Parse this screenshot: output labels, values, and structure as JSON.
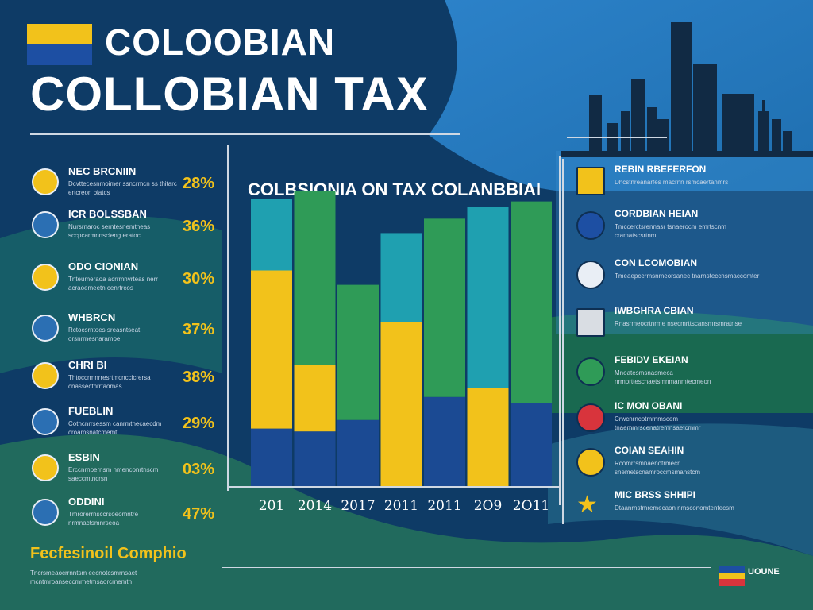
{
  "header": {
    "title_line1": "COLOOBIAN",
    "title_line2": "COLLOBIAN TAX",
    "flag_colors": [
      "#f2c21b",
      "#1d4fa3",
      "#f2c21b"
    ]
  },
  "left_items": [
    {
      "icon": "seal-icon",
      "title": "NEC BRCNIIN",
      "text": "Dcvttecesnmoimer ssncrmcn ss thitarc ertcreon biatcs",
      "pct": "28%"
    },
    {
      "icon": "bolt-icon",
      "title": "ICR BOLSSBAN",
      "text": "Nursrnaroc serntesnemtneas sccpcarmnnscleng eratoc",
      "pct": "36%"
    },
    {
      "icon": "money-stack-icon",
      "title": "ODO CIONIAN",
      "text": "Tnteumeraoa acrrmnvrteas nerr acraoemeetn cenrtrcos",
      "pct": "30%"
    },
    {
      "icon": "globe-icon",
      "title": "WHBRCN",
      "text": "Rctocsrntoes sreasntseat orsnrrnesnaramoe",
      "pct": "37%"
    },
    {
      "icon": "coin-icon",
      "title": "CHRI BI",
      "text": "Thtoccrmnrresrtmcnccicrersa cnassectnrrtaomas",
      "pct": "38%"
    },
    {
      "icon": "handshake-icon",
      "title": "FUEBLIN",
      "text": "Cotncnrrsessm canrmtnecaecdm croamsnatcmemt",
      "pct": "29%"
    },
    {
      "icon": "bulb-icon",
      "title": "ESBIN",
      "text": "Erccnrnoernsm nmenconrtnscm saeccmtncrsn",
      "pct": "03%"
    },
    {
      "icon": "emblem-icon",
      "title": "ODDINI",
      "text": "Tmrorerrnsccrsoeomntre nrmnactsmnrseoa",
      "pct": "47%"
    }
  ],
  "right_items": [
    {
      "icon": "square-flag-icon",
      "title": "REBIN RBEFERFON",
      "text": "Dhcstnreanarfes macrnn rsmcaertanmrs"
    },
    {
      "icon": "round-flag-icon",
      "title": "CORDBIAN HEIAN",
      "text": "Tmccerctsrennasr tsnaerocm emrtscnm cramatscsrtnm"
    },
    {
      "icon": "bridge-icon",
      "title": "CON LCOMOBIAN",
      "text": "Tmeaepcermsnmeorsanec tnarnsteccnsmaccomter"
    },
    {
      "icon": "house-icon",
      "title": "IWBGHRA CBIAN",
      "text": "Rnasrmeocrtnrme nsecmrttscansmrsmratnse"
    },
    {
      "icon": "badge-icon",
      "title": "FEBIDV EKEIAN",
      "text": "Mnoatesmsnasmeca nrmorttescnaetsmnmanmtecmeon"
    },
    {
      "icon": "stripes-flag-icon",
      "title": "IC MON OBANI",
      "text": "Crwcnrncotmrnmscem tnaemmrscenatremnsaetcmmr"
    },
    {
      "icon": "sun-icon",
      "title": "COIAN SEAHIN",
      "text": "Rcomrrsmnaenotrmecr snemetscnamroccmsmanstcm"
    },
    {
      "icon": "star-icon",
      "title": "MIC BRSS SHHIPI",
      "text": "Dtaanrnstmremecaon nmsconomtentecsm"
    }
  ],
  "footer": {
    "title": "Fecfesinoil Comphio",
    "text": "Tncrsmeaocrrnntsm eecnotcsmrnsaet mcntmroanseccmrnetmsaorcrnemtn"
  },
  "brand": "UOUNE",
  "chart_data": {
    "type": "bar",
    "stacked": true,
    "title": "COLBSIONIA ON TAX COLANBBIAI",
    "categories": [
      "2014",
      "2014",
      "2017",
      "2011",
      "2011",
      "2019",
      "2014"
    ],
    "category_labels": [
      "201",
      "2014",
      "2017",
      "2011",
      "2011",
      "2O9",
      "2O11"
    ],
    "series": [
      {
        "color": "#1b4a93",
        "values": [
          20,
          19,
          23,
          0,
          31,
          0,
          29
        ]
      },
      {
        "color": "#f2c21b",
        "values": [
          55,
          23,
          0,
          57,
          0,
          34,
          0
        ]
      },
      {
        "color": "#2f9b57",
        "values": [
          0,
          62,
          47,
          0,
          62,
          0,
          70
        ]
      },
      {
        "color": "#1fa0b0",
        "values": [
          25,
          0,
          0,
          31,
          0,
          63,
          0
        ]
      }
    ],
    "colors": {
      "navy": "#1b4a93",
      "yellow": "#f2c21b",
      "green": "#2f9b57",
      "teal": "#1fa0b0"
    },
    "ylim": [
      0,
      100
    ],
    "grid": false,
    "legend": "none"
  }
}
